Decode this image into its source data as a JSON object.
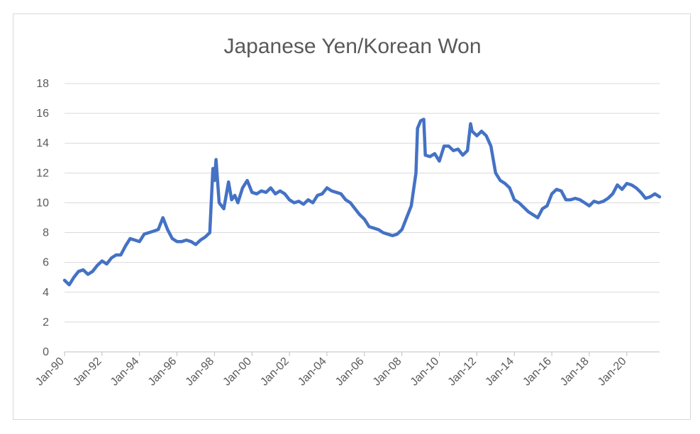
{
  "chart_data": {
    "type": "line",
    "title": "Japanese Yen/Korean Won",
    "xlabel": "",
    "ylabel": "",
    "ylim": [
      0,
      18
    ],
    "yticks": [
      "0",
      "2",
      "4",
      "6",
      "8",
      "10",
      "12",
      "14",
      "16",
      "18"
    ],
    "x_tick_labels": [
      "Jan-90",
      "Jan-92",
      "Jan-94",
      "Jan-96",
      "Jan-98",
      "Jan-00",
      "Jan-02",
      "Jan-04",
      "Jan-06",
      "Jan-08",
      "Jan-10",
      "Jan-12",
      "Jan-14",
      "Jan-16",
      "Jan-18",
      "Jan-20"
    ],
    "x_range": [
      "1990-01",
      "2021-10"
    ],
    "grid": true,
    "legend": "none",
    "line_color": "#4472c4",
    "series": [
      {
        "x": [
          "1990-01",
          "1990-04",
          "1990-07",
          "1990-10",
          "1991-01",
          "1991-04",
          "1991-07",
          "1991-10",
          "1992-01",
          "1992-04",
          "1992-07",
          "1992-10",
          "1993-01",
          "1993-04",
          "1993-07",
          "1993-10",
          "1994-01",
          "1994-04",
          "1994-07",
          "1994-10",
          "1995-01",
          "1995-04",
          "1995-07",
          "1995-10",
          "1996-01",
          "1996-04",
          "1996-07",
          "1996-10",
          "1997-01",
          "1997-04",
          "1997-07",
          "1997-10",
          "1997-12",
          "1998-01",
          "1998-02",
          "1998-04",
          "1998-07",
          "1998-10",
          "1998-12",
          "1999-02",
          "1999-04",
          "1999-07",
          "1999-10",
          "2000-01",
          "2000-04",
          "2000-07",
          "2000-10",
          "2001-01",
          "2001-04",
          "2001-07",
          "2001-10",
          "2002-01",
          "2002-04",
          "2002-07",
          "2002-10",
          "2003-01",
          "2003-04",
          "2003-07",
          "2003-10",
          "2004-01",
          "2004-04",
          "2004-07",
          "2004-10",
          "2005-01",
          "2005-04",
          "2005-07",
          "2005-10",
          "2006-01",
          "2006-04",
          "2006-07",
          "2006-10",
          "2007-01",
          "2007-04",
          "2007-07",
          "2007-10",
          "2008-01",
          "2008-04",
          "2008-07",
          "2008-10",
          "2008-11",
          "2009-01",
          "2009-03",
          "2009-04",
          "2009-07",
          "2009-10",
          "2010-01",
          "2010-04",
          "2010-07",
          "2010-10",
          "2011-01",
          "2011-04",
          "2011-07",
          "2011-09",
          "2011-10",
          "2012-01",
          "2012-04",
          "2012-07",
          "2012-10",
          "2013-01",
          "2013-04",
          "2013-07",
          "2013-10",
          "2014-01",
          "2014-04",
          "2014-07",
          "2014-10",
          "2015-01",
          "2015-04",
          "2015-07",
          "2015-10",
          "2016-01",
          "2016-04",
          "2016-07",
          "2016-10",
          "2017-01",
          "2017-04",
          "2017-07",
          "2017-10",
          "2018-01",
          "2018-04",
          "2018-07",
          "2018-10",
          "2019-01",
          "2019-04",
          "2019-07",
          "2019-10",
          "2020-01",
          "2020-04",
          "2020-07",
          "2020-10",
          "2021-01",
          "2021-04",
          "2021-07",
          "2021-10"
        ],
        "values": [
          4.8,
          4.5,
          5.0,
          5.4,
          5.5,
          5.2,
          5.4,
          5.8,
          6.1,
          5.9,
          6.3,
          6.5,
          6.5,
          7.1,
          7.6,
          7.5,
          7.4,
          7.9,
          8.0,
          8.1,
          8.2,
          9.0,
          8.2,
          7.6,
          7.4,
          7.4,
          7.5,
          7.4,
          7.2,
          7.5,
          7.7,
          8.0,
          12.3,
          11.5,
          12.9,
          10.0,
          9.6,
          11.4,
          10.2,
          10.5,
          10.0,
          11.0,
          11.5,
          10.7,
          10.6,
          10.8,
          10.7,
          11.0,
          10.6,
          10.8,
          10.6,
          10.2,
          10.0,
          10.1,
          9.9,
          10.2,
          10.0,
          10.5,
          10.6,
          11.0,
          10.8,
          10.7,
          10.6,
          10.2,
          10.0,
          9.6,
          9.2,
          8.9,
          8.4,
          8.3,
          8.2,
          8.0,
          7.9,
          7.8,
          7.9,
          8.2,
          9.0,
          9.8,
          12.0,
          15.0,
          15.5,
          15.6,
          13.2,
          13.1,
          13.3,
          12.8,
          13.8,
          13.8,
          13.5,
          13.6,
          13.2,
          13.5,
          15.3,
          14.8,
          14.5,
          14.8,
          14.5,
          13.8,
          12.0,
          11.5,
          11.3,
          11.0,
          10.2,
          10.0,
          9.7,
          9.4,
          9.2,
          9.0,
          9.6,
          9.8,
          10.6,
          10.9,
          10.8,
          10.2,
          10.2,
          10.3,
          10.2,
          10.0,
          9.8,
          10.1,
          10.0,
          10.1,
          10.3,
          10.6,
          11.2,
          10.9,
          11.3,
          11.2,
          11.0,
          10.7,
          10.3,
          10.4,
          10.6,
          10.4
        ]
      }
    ]
  }
}
